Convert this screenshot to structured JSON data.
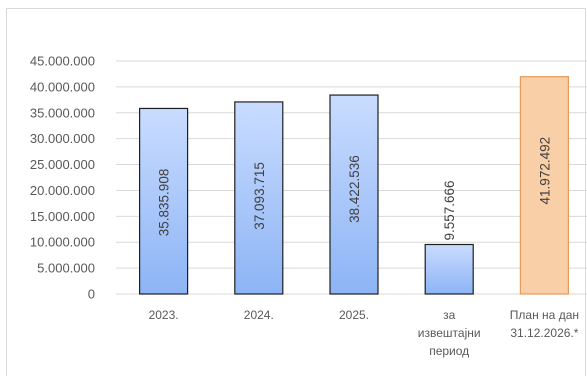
{
  "chart_data": {
    "type": "bar",
    "categories": [
      [
        "2023."
      ],
      [
        "2024."
      ],
      [
        "2025."
      ],
      [
        "за",
        "извештајни",
        "период"
      ],
      [
        "План на дан",
        "31.12.2026.*"
      ]
    ],
    "values": [
      35835908,
      37093715,
      38422536,
      9557666,
      41972492
    ],
    "value_labels": [
      "35.835.908",
      "37.093.715",
      "38.422.536",
      "9.557.666",
      "41.972.492"
    ],
    "yticks": [
      "0",
      "5.000.000",
      "10.000.000",
      "15.000.000",
      "20.000.000",
      "25.000.000",
      "30.000.000",
      "35.000.000",
      "40.000.000",
      "45.000.000"
    ],
    "ylim": [
      0,
      45000000
    ],
    "grid": true,
    "colors": {
      "bar_fill_top": "#c9dcff",
      "bar_fill_bottom": "#8db4f5",
      "bar_stroke": "#1f1f1f",
      "highlight_fill": "#f9cfa8",
      "highlight_stroke": "#e69b5a",
      "gridline": "#d9d9d9",
      "tick_text": "#595959"
    },
    "highlight_index": 4
  }
}
